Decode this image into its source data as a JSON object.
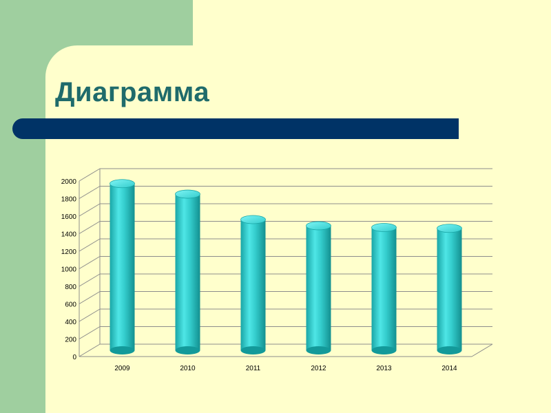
{
  "slide": {
    "title": "Диаграмма"
  },
  "colors": {
    "background_green": "#9fcf9f",
    "panel_yellow": "#ffffcc",
    "title_teal": "#1f6b6b",
    "bar_navy": "#003366",
    "bar_cyan": "#33cccc"
  },
  "chart_data": {
    "type": "bar",
    "categories": [
      "2009",
      "2010",
      "2011",
      "2012",
      "2013",
      "2014"
    ],
    "values": [
      1900,
      1780,
      1490,
      1420,
      1400,
      1390
    ],
    "yticks": [
      "0",
      "200",
      "400",
      "600",
      "800",
      "1000",
      "1200",
      "1400",
      "1600",
      "1800",
      "2000"
    ],
    "ylim": [
      0,
      2000
    ],
    "grid": true,
    "style": "3d-cylinder"
  }
}
